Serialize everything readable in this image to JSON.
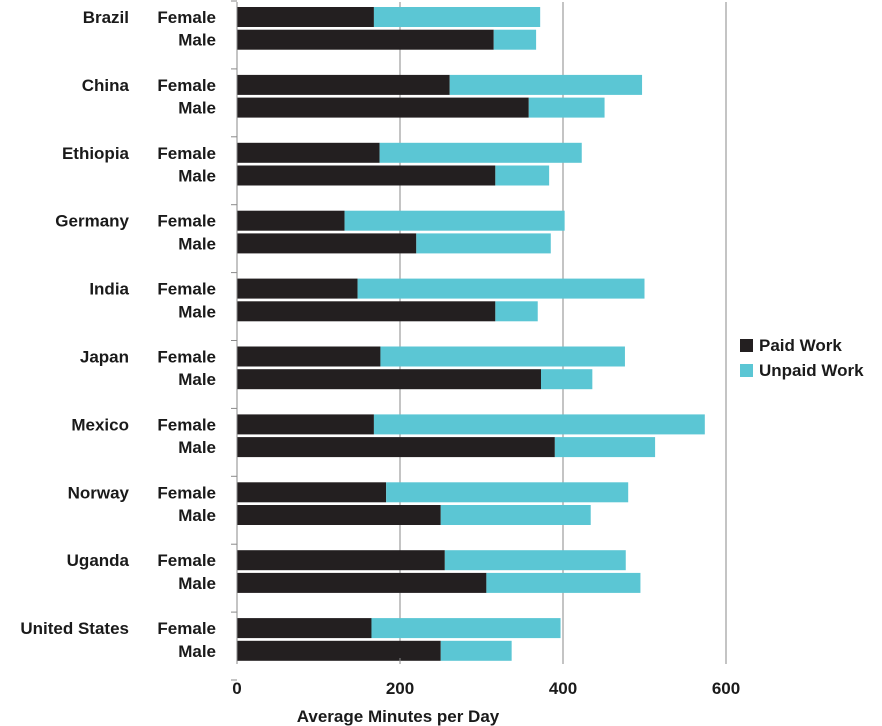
{
  "chart_data": {
    "type": "bar",
    "orientation": "horizontal",
    "stacked": true,
    "xlabel": "Average Minutes per Day",
    "ylabel": "",
    "xlim": [
      0,
      600
    ],
    "xticks": [
      0,
      200,
      400,
      600
    ],
    "grid": true,
    "legend_position": "right",
    "colors": {
      "paid": "#231f20",
      "unpaid": "#5bc6d4"
    },
    "groups": [
      {
        "country": "Brazil",
        "rows": [
          {
            "gender": "Female",
            "paid": 168,
            "unpaid": 204
          },
          {
            "gender": "Male",
            "paid": 315,
            "unpaid": 52
          }
        ]
      },
      {
        "country": "China",
        "rows": [
          {
            "gender": "Female",
            "paid": 261,
            "unpaid": 236
          },
          {
            "gender": "Male",
            "paid": 358,
            "unpaid": 93
          }
        ]
      },
      {
        "country": "Ethiopia",
        "rows": [
          {
            "gender": "Female",
            "paid": 175,
            "unpaid": 248
          },
          {
            "gender": "Male",
            "paid": 317,
            "unpaid": 66
          }
        ]
      },
      {
        "country": "Germany",
        "rows": [
          {
            "gender": "Female",
            "paid": 132,
            "unpaid": 270
          },
          {
            "gender": "Male",
            "paid": 220,
            "unpaid": 165
          }
        ]
      },
      {
        "country": "India",
        "rows": [
          {
            "gender": "Female",
            "paid": 148,
            "unpaid": 352
          },
          {
            "gender": "Male",
            "paid": 317,
            "unpaid": 52
          }
        ]
      },
      {
        "country": "Japan",
        "rows": [
          {
            "gender": "Female",
            "paid": 176,
            "unpaid": 300
          },
          {
            "gender": "Male",
            "paid": 373,
            "unpaid": 63
          }
        ]
      },
      {
        "country": "Mexico",
        "rows": [
          {
            "gender": "Female",
            "paid": 168,
            "unpaid": 406
          },
          {
            "gender": "Male",
            "paid": 390,
            "unpaid": 123
          }
        ]
      },
      {
        "country": "Norway",
        "rows": [
          {
            "gender": "Female",
            "paid": 183,
            "unpaid": 297
          },
          {
            "gender": "Male",
            "paid": 250,
            "unpaid": 184
          }
        ]
      },
      {
        "country": "Uganda",
        "rows": [
          {
            "gender": "Female",
            "paid": 255,
            "unpaid": 222
          },
          {
            "gender": "Male",
            "paid": 306,
            "unpaid": 189
          }
        ]
      },
      {
        "country": "United States",
        "rows": [
          {
            "gender": "Female",
            "paid": 165,
            "unpaid": 232
          },
          {
            "gender": "Male",
            "paid": 250,
            "unpaid": 87
          }
        ]
      }
    ],
    "legend": [
      {
        "key": "paid",
        "label": "Paid Work"
      },
      {
        "key": "unpaid",
        "label": "Unpaid Work"
      }
    ]
  }
}
